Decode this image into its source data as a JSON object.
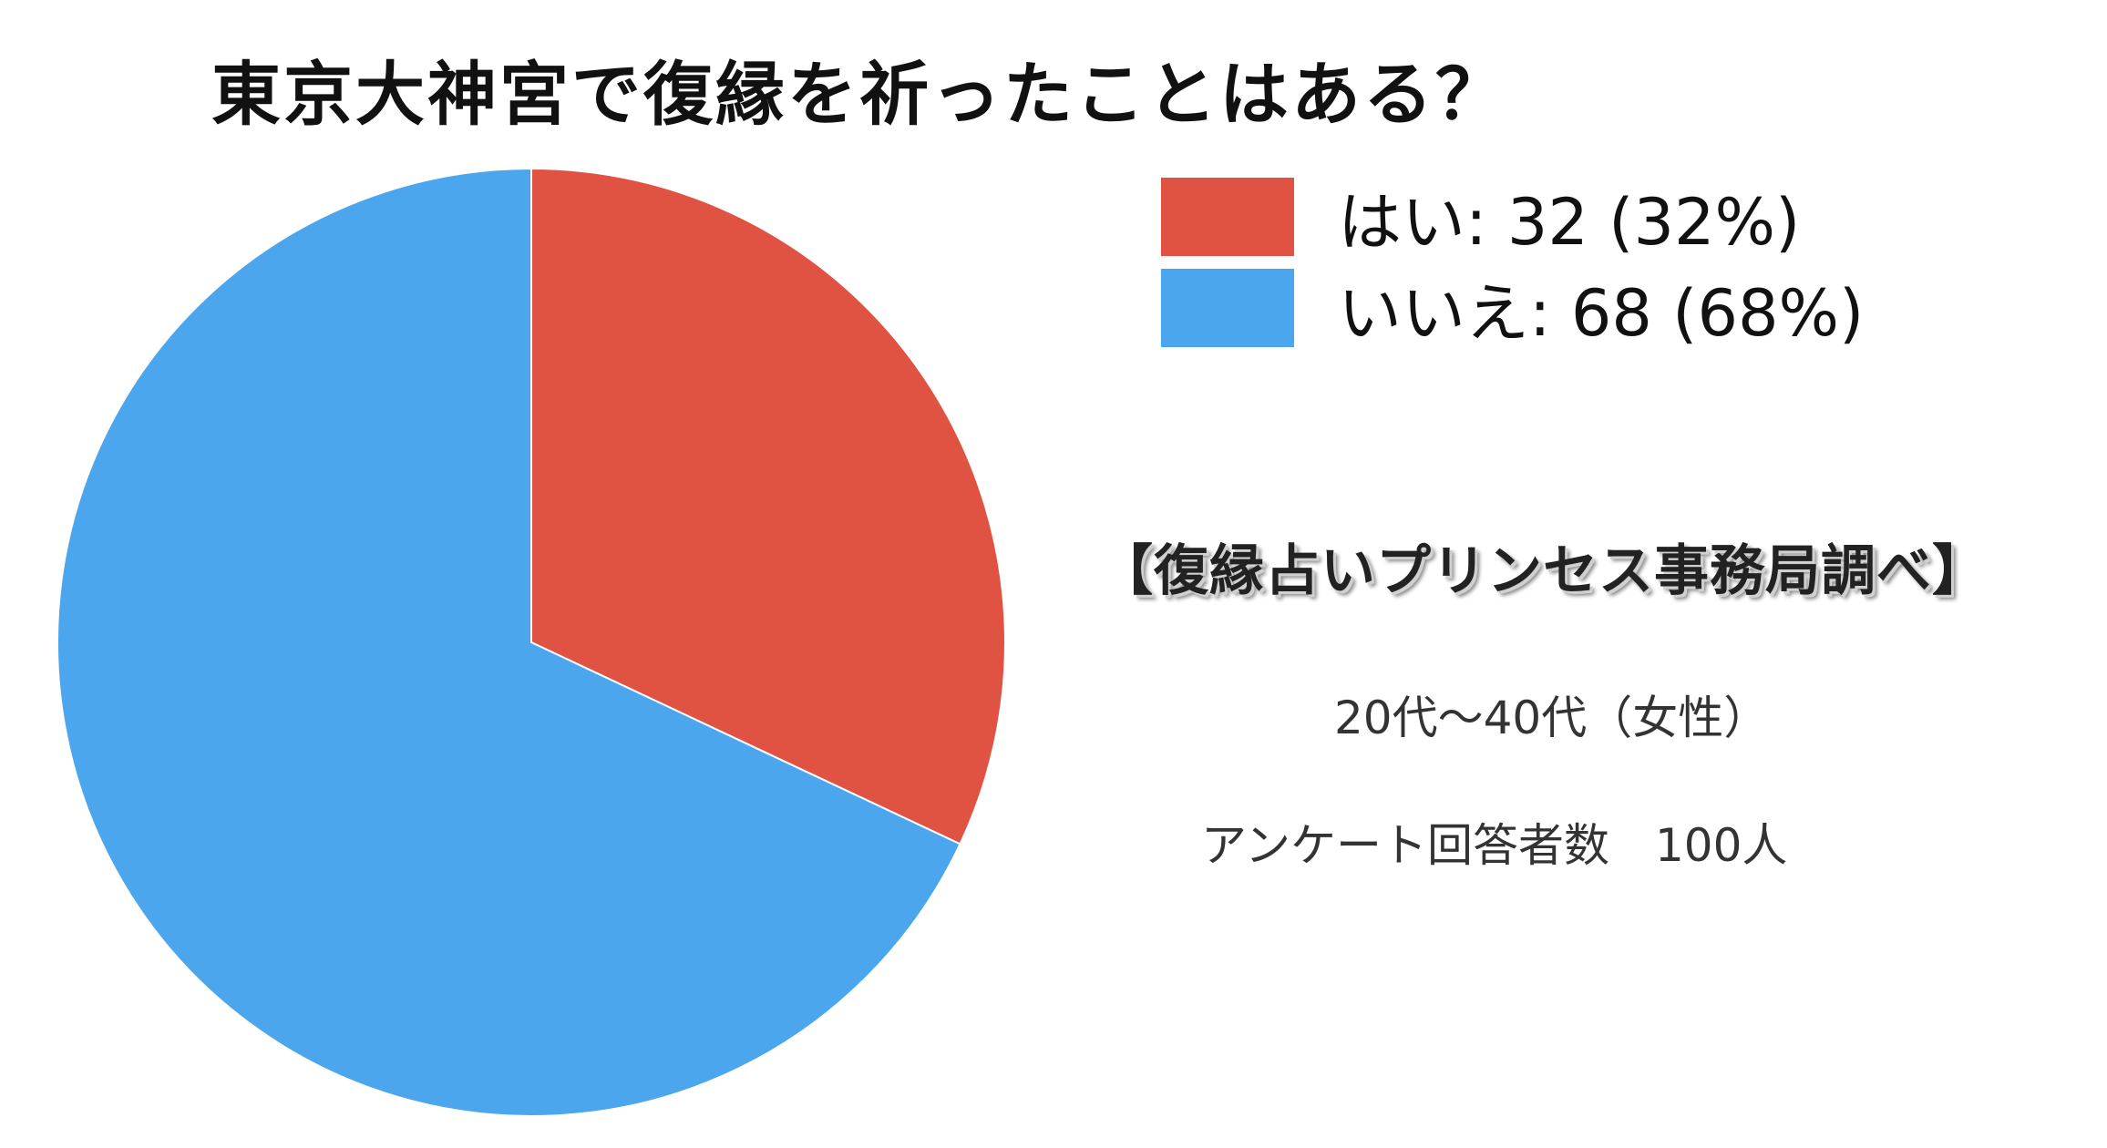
{
  "chart_data": {
    "type": "pie",
    "title": "東京大神宮で復縁を祈ったことはある？",
    "categories": [
      "はい",
      "いいえ"
    ],
    "values": [
      32,
      68
    ],
    "percentages": [
      "32%",
      "68%"
    ],
    "colors": [
      "#E05343",
      "#4BA6ED"
    ],
    "legend": {
      "placement": "top-right",
      "entries": [
        "はい: 32 (32%)",
        "いいえ: 68 (68%)"
      ]
    }
  },
  "source": "【復縁占いプリンセス事務局調べ】",
  "survey": {
    "age_group": "20代〜40代（女性）",
    "respondents": "アンケート回答者数　100人"
  }
}
